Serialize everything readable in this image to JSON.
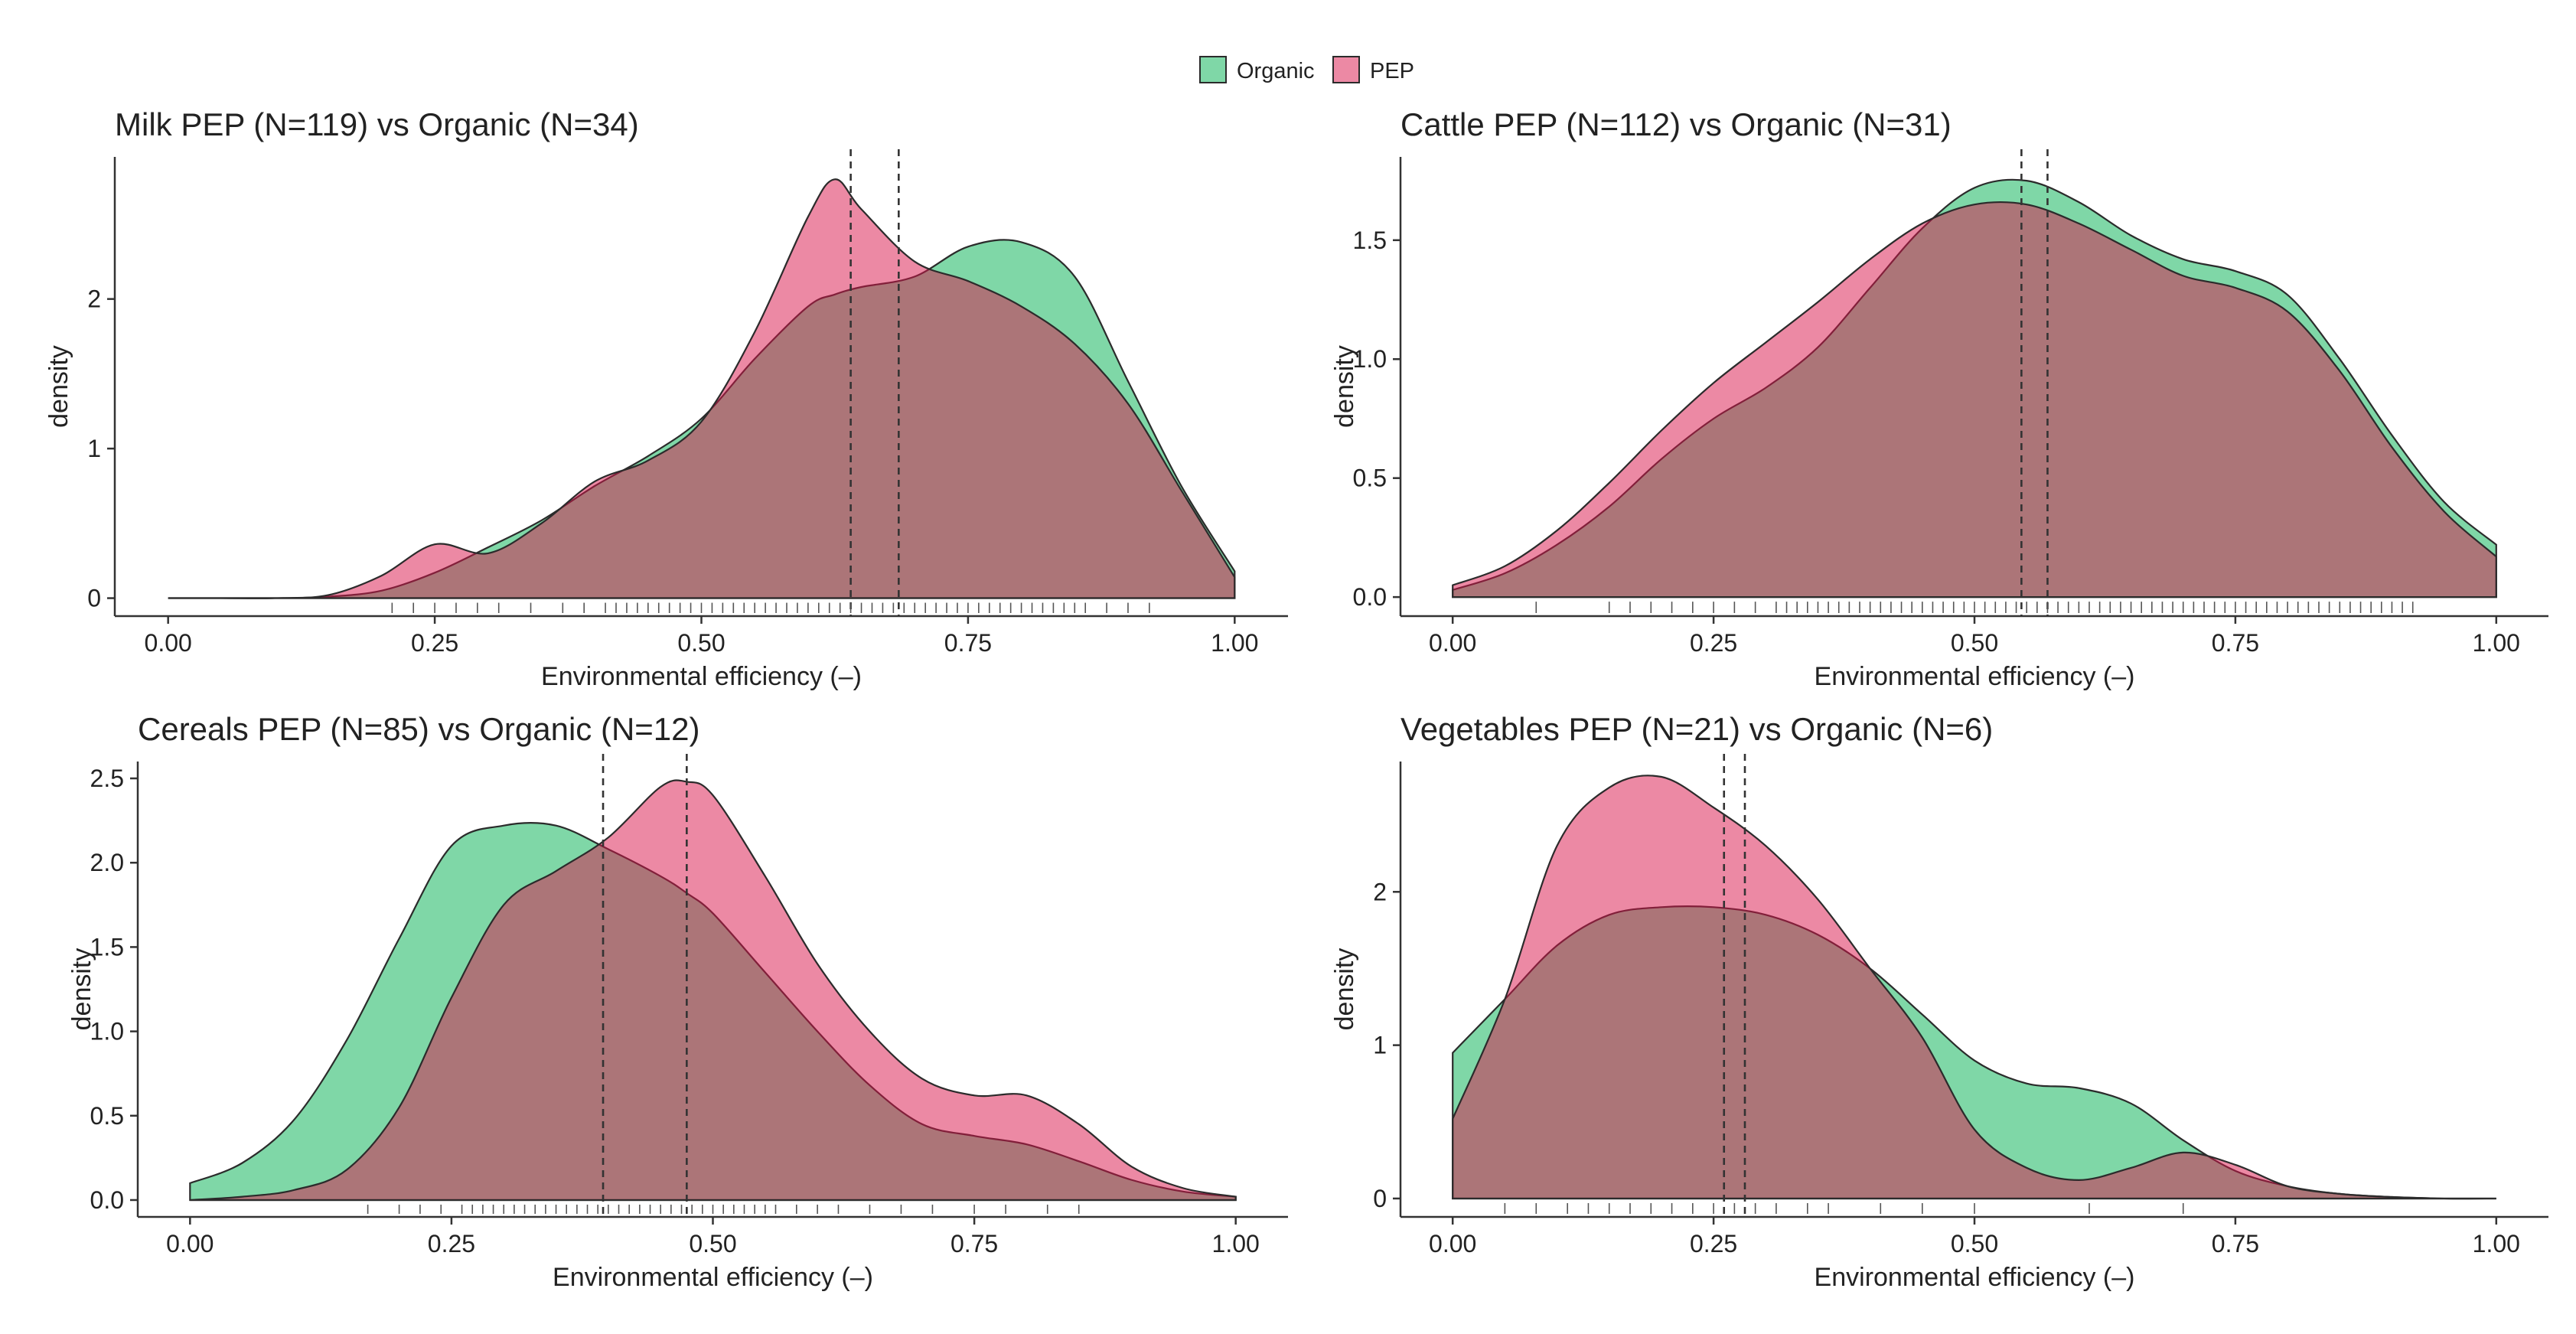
{
  "colors": {
    "Organic": "#00B050",
    "PEP": "#D9144A"
  },
  "legend": {
    "items": [
      "Organic",
      "PEP"
    ],
    "position": "top-center"
  },
  "chart_data": [
    {
      "type": "area",
      "title": "Milk PEP (N=119) vs Organic (N=34)",
      "xlabel": "Environmental efficiency (–)",
      "ylabel": "density",
      "xlim": [
        -0.05,
        1.05
      ],
      "ylim": [
        -0.12,
        2.95
      ],
      "xticks": [
        "0.00",
        "0.25",
        "0.50",
        "0.75",
        "1.00"
      ],
      "yticks": [
        "0",
        "1",
        "2"
      ],
      "means": [
        0.64,
        0.685
      ],
      "x": [
        0.0,
        0.05,
        0.1,
        0.15,
        0.2,
        0.25,
        0.3,
        0.35,
        0.4,
        0.45,
        0.5,
        0.55,
        0.6,
        0.625,
        0.65,
        0.7,
        0.75,
        0.8,
        0.85,
        0.9,
        0.95,
        1.0
      ],
      "series": [
        {
          "name": "Organic",
          "values": [
            0.0,
            0.0,
            0.0,
            0.01,
            0.05,
            0.17,
            0.34,
            0.52,
            0.75,
            0.95,
            1.2,
            1.6,
            1.95,
            2.03,
            2.08,
            2.15,
            2.35,
            2.38,
            2.15,
            1.45,
            0.75,
            0.18
          ]
        },
        {
          "name": "PEP",
          "values": [
            0.0,
            0.0,
            0.0,
            0.02,
            0.15,
            0.36,
            0.3,
            0.5,
            0.78,
            0.92,
            1.18,
            1.78,
            2.55,
            2.8,
            2.6,
            2.25,
            2.12,
            1.95,
            1.7,
            1.3,
            0.72,
            0.14
          ]
        }
      ],
      "rug": [
        0.21,
        0.23,
        0.25,
        0.27,
        0.29,
        0.31,
        0.34,
        0.37,
        0.39,
        0.41,
        0.42,
        0.43,
        0.44,
        0.45,
        0.46,
        0.47,
        0.48,
        0.49,
        0.5,
        0.51,
        0.52,
        0.53,
        0.54,
        0.55,
        0.56,
        0.57,
        0.58,
        0.59,
        0.6,
        0.61,
        0.62,
        0.63,
        0.64,
        0.65,
        0.66,
        0.67,
        0.68,
        0.69,
        0.7,
        0.71,
        0.72,
        0.73,
        0.74,
        0.75,
        0.76,
        0.77,
        0.78,
        0.79,
        0.8,
        0.81,
        0.82,
        0.83,
        0.84,
        0.85,
        0.86,
        0.88,
        0.9,
        0.92
      ]
    },
    {
      "type": "area",
      "title": "Cattle PEP (N=112) vs Organic (N=31)",
      "xlabel": "Environmental efficiency (–)",
      "ylabel": "density",
      "xlim": [
        -0.05,
        1.05
      ],
      "ylim": [
        -0.08,
        1.85
      ],
      "xticks": [
        "0.00",
        "0.25",
        "0.50",
        "0.75",
        "1.00"
      ],
      "yticks": [
        "0.0",
        "0.5",
        "1.0",
        "1.5"
      ],
      "means": [
        0.545,
        0.57
      ],
      "x": [
        0.0,
        0.05,
        0.1,
        0.15,
        0.2,
        0.25,
        0.3,
        0.35,
        0.4,
        0.45,
        0.5,
        0.55,
        0.6,
        0.65,
        0.7,
        0.75,
        0.8,
        0.85,
        0.9,
        0.95,
        1.0
      ],
      "series": [
        {
          "name": "Organic",
          "values": [
            0.03,
            0.1,
            0.22,
            0.38,
            0.58,
            0.75,
            0.88,
            1.05,
            1.3,
            1.55,
            1.72,
            1.75,
            1.66,
            1.52,
            1.42,
            1.37,
            1.27,
            1.0,
            0.68,
            0.4,
            0.22
          ]
        },
        {
          "name": "PEP",
          "values": [
            0.05,
            0.13,
            0.28,
            0.48,
            0.7,
            0.9,
            1.07,
            1.24,
            1.42,
            1.57,
            1.65,
            1.65,
            1.57,
            1.46,
            1.35,
            1.3,
            1.2,
            0.95,
            0.63,
            0.36,
            0.17
          ]
        }
      ],
      "rug": [
        0.08,
        0.15,
        0.17,
        0.19,
        0.21,
        0.23,
        0.25,
        0.27,
        0.29,
        0.31,
        0.32,
        0.33,
        0.34,
        0.35,
        0.36,
        0.37,
        0.38,
        0.39,
        0.4,
        0.41,
        0.42,
        0.43,
        0.44,
        0.45,
        0.46,
        0.47,
        0.48,
        0.49,
        0.5,
        0.51,
        0.52,
        0.53,
        0.54,
        0.55,
        0.56,
        0.57,
        0.58,
        0.59,
        0.6,
        0.61,
        0.62,
        0.63,
        0.64,
        0.65,
        0.66,
        0.67,
        0.68,
        0.69,
        0.7,
        0.71,
        0.72,
        0.73,
        0.74,
        0.75,
        0.76,
        0.77,
        0.78,
        0.79,
        0.8,
        0.81,
        0.82,
        0.83,
        0.84,
        0.85,
        0.86,
        0.87,
        0.88,
        0.89,
        0.9,
        0.91,
        0.92
      ]
    },
    {
      "type": "area",
      "title": "Cereals PEP (N=85) vs Organic (N=12)",
      "xlabel": "Environmental efficiency (–)",
      "ylabel": "density",
      "xlim": [
        -0.05,
        1.05
      ],
      "ylim": [
        -0.1,
        2.6
      ],
      "xticks": [
        "0.00",
        "0.25",
        "0.50",
        "0.75",
        "1.00"
      ],
      "yticks": [
        "0.0",
        "0.5",
        "1.0",
        "1.5",
        "2.0",
        "2.5"
      ],
      "means": [
        0.395,
        0.475
      ],
      "x": [
        0.0,
        0.05,
        0.1,
        0.15,
        0.2,
        0.25,
        0.3,
        0.35,
        0.4,
        0.45,
        0.475,
        0.5,
        0.55,
        0.6,
        0.65,
        0.7,
        0.75,
        0.8,
        0.85,
        0.9,
        0.95,
        1.0
      ],
      "series": [
        {
          "name": "Organic",
          "values": [
            0.1,
            0.22,
            0.48,
            0.95,
            1.55,
            2.1,
            2.22,
            2.22,
            2.08,
            1.92,
            1.82,
            1.7,
            1.35,
            1.0,
            0.68,
            0.45,
            0.38,
            0.33,
            0.23,
            0.12,
            0.05,
            0.02
          ]
        },
        {
          "name": "PEP",
          "values": [
            0.0,
            0.02,
            0.06,
            0.18,
            0.55,
            1.2,
            1.75,
            1.95,
            2.15,
            2.45,
            2.48,
            2.4,
            1.92,
            1.4,
            1.0,
            0.72,
            0.62,
            0.62,
            0.45,
            0.2,
            0.07,
            0.02
          ]
        }
      ],
      "rug": [
        0.17,
        0.2,
        0.22,
        0.24,
        0.26,
        0.27,
        0.28,
        0.29,
        0.3,
        0.31,
        0.32,
        0.33,
        0.34,
        0.35,
        0.36,
        0.37,
        0.38,
        0.39,
        0.4,
        0.41,
        0.42,
        0.43,
        0.44,
        0.45,
        0.46,
        0.47,
        0.48,
        0.49,
        0.5,
        0.51,
        0.52,
        0.53,
        0.54,
        0.55,
        0.56,
        0.58,
        0.6,
        0.62,
        0.65,
        0.68,
        0.71,
        0.75,
        0.78,
        0.82,
        0.85
      ]
    },
    {
      "type": "area",
      "title": "Vegetables PEP (N=21) vs Organic (N=6)",
      "xlabel": "Environmental efficiency (–)",
      "ylabel": "density",
      "xlim": [
        -0.05,
        1.05
      ],
      "ylim": [
        -0.12,
        2.85
      ],
      "xticks": [
        "0.00",
        "0.25",
        "0.50",
        "0.75",
        "1.00"
      ],
      "yticks": [
        "0",
        "1",
        "2"
      ],
      "means": [
        0.26,
        0.28
      ],
      "x": [
        0.0,
        0.05,
        0.1,
        0.15,
        0.2,
        0.25,
        0.3,
        0.35,
        0.4,
        0.45,
        0.5,
        0.55,
        0.6,
        0.65,
        0.7,
        0.75,
        0.8,
        0.85,
        0.9,
        0.95,
        1.0
      ],
      "series": [
        {
          "name": "Organic",
          "values": [
            0.95,
            1.3,
            1.65,
            1.85,
            1.9,
            1.9,
            1.85,
            1.72,
            1.5,
            1.2,
            0.9,
            0.75,
            0.72,
            0.62,
            0.38,
            0.18,
            0.08,
            0.03,
            0.01,
            0.0,
            0.0
          ]
        },
        {
          "name": "PEP",
          "values": [
            0.52,
            1.3,
            2.3,
            2.68,
            2.75,
            2.55,
            2.3,
            1.95,
            1.5,
            1.05,
            0.45,
            0.2,
            0.12,
            0.2,
            0.3,
            0.22,
            0.08,
            0.03,
            0.01,
            0.0,
            0.0
          ]
        }
      ],
      "rug": [
        0.05,
        0.08,
        0.11,
        0.13,
        0.15,
        0.17,
        0.19,
        0.21,
        0.23,
        0.25,
        0.27,
        0.29,
        0.31,
        0.34,
        0.36,
        0.41,
        0.45,
        0.5,
        0.61,
        0.7
      ]
    }
  ]
}
